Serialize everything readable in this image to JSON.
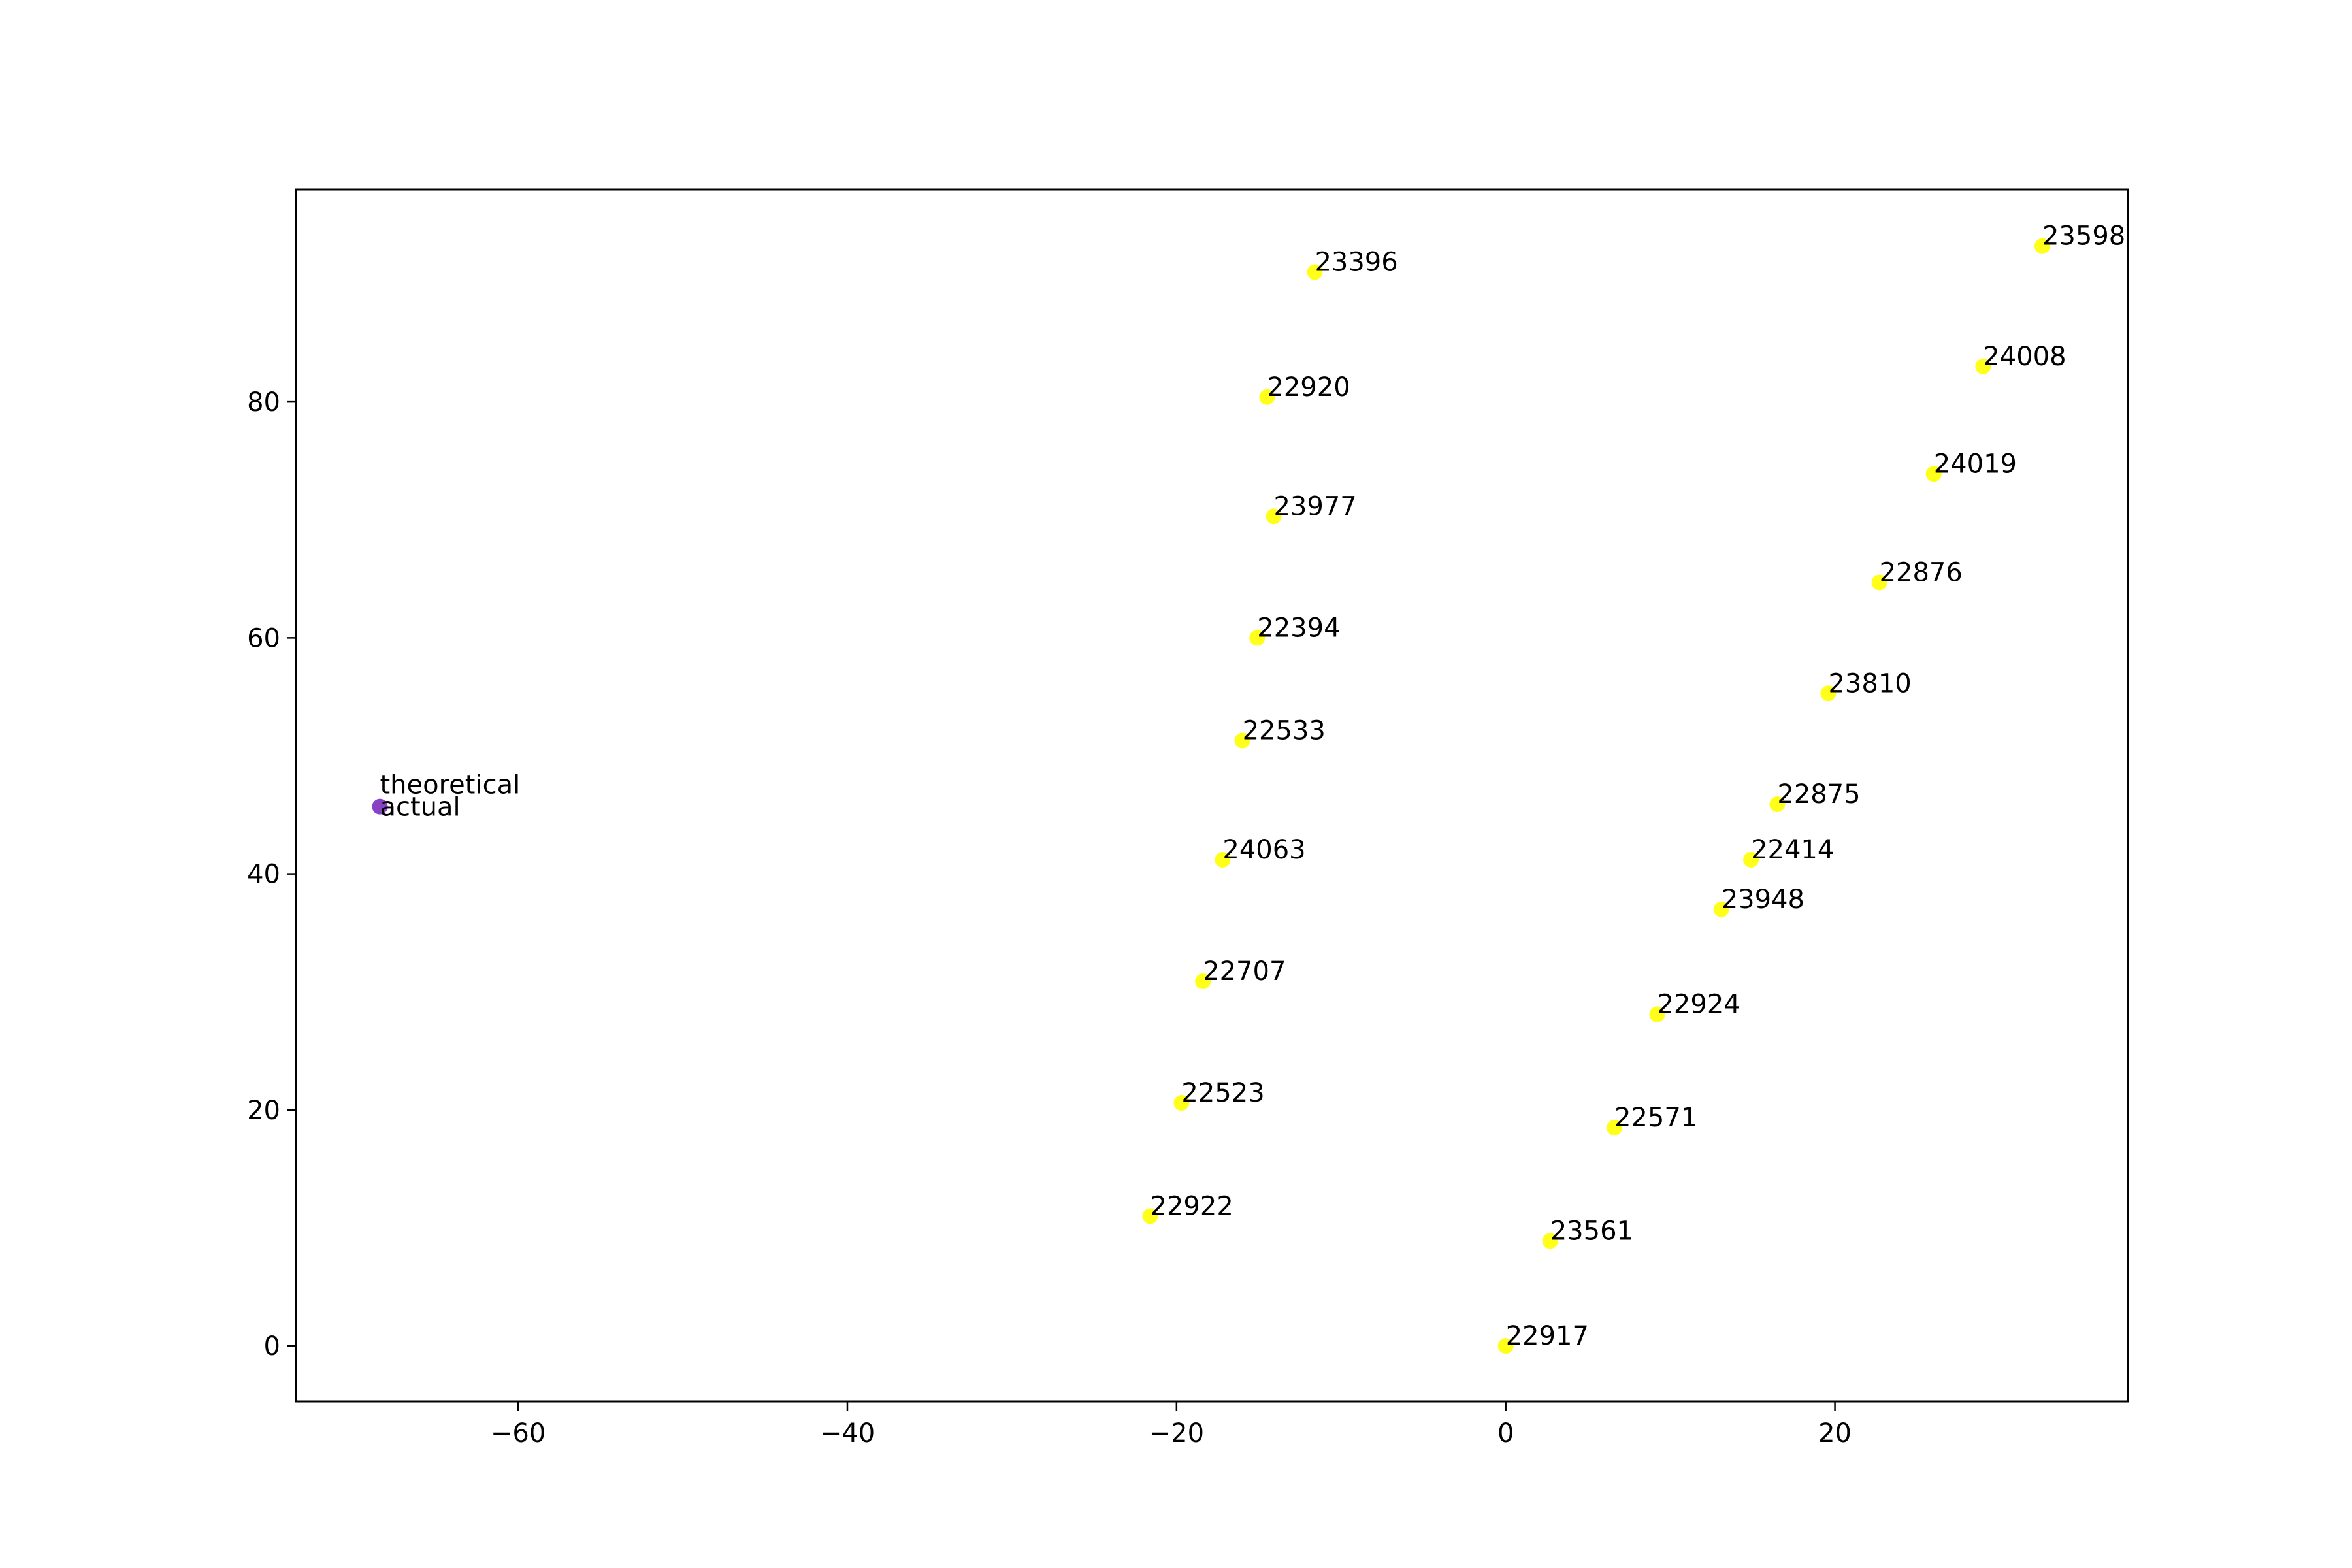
{
  "chart_data": {
    "type": "scatter",
    "title": "",
    "xlabel": "",
    "ylabel": "",
    "xlim": [
      -73.5,
      37.8
    ],
    "ylim": [
      -4.7,
      98.0
    ],
    "grid": false,
    "xticks": [
      {
        "value": -60,
        "label": "−60"
      },
      {
        "value": -40,
        "label": "−40"
      },
      {
        "value": -20,
        "label": "−20"
      },
      {
        "value": 0,
        "label": "0"
      },
      {
        "value": 20,
        "label": "20"
      }
    ],
    "yticks": [
      {
        "value": 0,
        "label": "0"
      },
      {
        "value": 20,
        "label": "20"
      },
      {
        "value": 40,
        "label": "40"
      },
      {
        "value": 60,
        "label": "60"
      },
      {
        "value": 80,
        "label": "80"
      }
    ],
    "colors": {
      "numbered_points": "#ffff00",
      "reference_point": "#7b2fbf"
    },
    "series": [
      {
        "color": "#ffff00",
        "points": [
          {
            "label": "23396",
            "x": -11.6,
            "y": 91.0
          },
          {
            "label": "22920",
            "x": -14.5,
            "y": 80.4
          },
          {
            "label": "23977",
            "x": -14.1,
            "y": 70.3
          },
          {
            "label": "22394",
            "x": -15.1,
            "y": 60.0
          },
          {
            "label": "22533",
            "x": -16.0,
            "y": 51.3
          },
          {
            "label": "24063",
            "x": -17.2,
            "y": 41.2
          },
          {
            "label": "22707",
            "x": -18.4,
            "y": 30.9
          },
          {
            "label": "22523",
            "x": -19.7,
            "y": 20.6
          },
          {
            "label": "22922",
            "x": -21.6,
            "y": 11.0
          },
          {
            "label": "22917",
            "x": 0.0,
            "y": 0.0
          },
          {
            "label": "23561",
            "x": 2.7,
            "y": 8.9
          },
          {
            "label": "22571",
            "x": 6.6,
            "y": 18.5
          },
          {
            "label": "22924",
            "x": 9.2,
            "y": 28.1
          },
          {
            "label": "23948",
            "x": 13.1,
            "y": 37.0
          },
          {
            "label": "22414",
            "x": 14.9,
            "y": 41.2
          },
          {
            "label": "22875",
            "x": 16.5,
            "y": 45.9
          },
          {
            "label": "23810",
            "x": 19.6,
            "y": 55.3
          },
          {
            "label": "22876",
            "x": 22.7,
            "y": 64.7
          },
          {
            "label": "24019",
            "x": 26.0,
            "y": 73.9
          },
          {
            "label": "24008",
            "x": 29.0,
            "y": 83.0
          },
          {
            "label": "23598",
            "x": 32.6,
            "y": 93.2
          }
        ]
      },
      {
        "color": "#7b2fbf",
        "points": [
          {
            "label": "theoretical",
            "x": -68.4,
            "y": 45.7,
            "label_pos": "above"
          },
          {
            "label": "actual",
            "x": -68.4,
            "y": 45.7,
            "label_pos": "below"
          }
        ]
      }
    ]
  }
}
